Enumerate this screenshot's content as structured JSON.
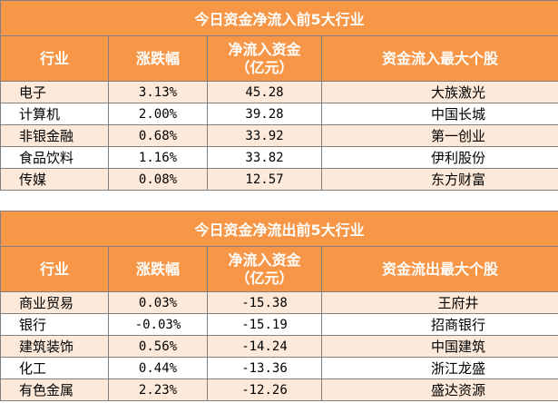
{
  "inflow": {
    "title": "今日资金净流入前5大行业",
    "headers": [
      "行业",
      "涨跌幅",
      "净流入资金\n（亿元）",
      "资金流入最大个股"
    ],
    "rows": [
      [
        "电子",
        "3.13%",
        "45.28",
        "大族激光"
      ],
      [
        "计算机",
        "2.00%",
        "39.28",
        "中国长城"
      ],
      [
        "非银金融",
        "0.68%",
        "33.92",
        "第一创业"
      ],
      [
        "食品饮料",
        "1.16%",
        "33.82",
        "伊利股份"
      ],
      [
        "传媒",
        "0.08%",
        "12.57",
        "东方财富"
      ]
    ]
  },
  "outflow": {
    "title": "今日资金净流出前5大行业",
    "headers": [
      "行业",
      "涨跌幅",
      "净流入资金\n（亿元）",
      "资金流出最大个股"
    ],
    "rows": [
      [
        "商业贸易",
        "0.03%",
        "-15.38",
        "王府井"
      ],
      [
        "银行",
        "-0.03%",
        "-15.19",
        "招商银行"
      ],
      [
        "建筑装饰",
        "0.56%",
        "-14.24",
        "中国建筑"
      ],
      [
        "化工",
        "0.44%",
        "-13.36",
        "浙江龙盛"
      ],
      [
        "有色金属",
        "2.23%",
        "-12.26",
        "盛达资源"
      ]
    ]
  },
  "colors": {
    "header_bg": "#f79646",
    "header_text": "#ffffff",
    "stripe": "#fde9d9",
    "border": "#808080"
  }
}
